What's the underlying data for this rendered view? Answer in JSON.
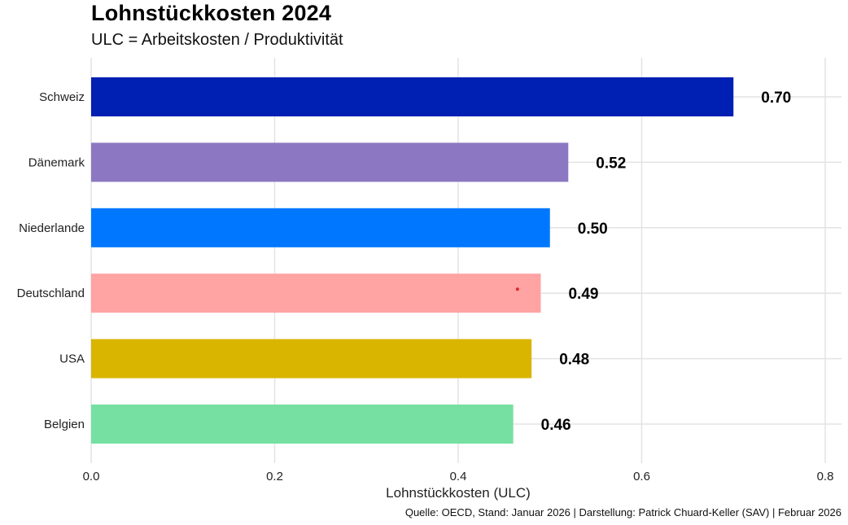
{
  "chart_data": {
    "type": "bar",
    "orientation": "horizontal",
    "title": "Lohnstückkosten 2024",
    "subtitle": "ULC = Arbeitskosten / Produktivität",
    "categories": [
      "Schweiz",
      "Dänemark",
      "Niederlande",
      "Deutschland",
      "USA",
      "Belgien"
    ],
    "values": [
      0.7,
      0.52,
      0.5,
      0.49,
      0.48,
      0.46
    ],
    "value_labels": [
      "0.70",
      "0.52",
      "0.50",
      "0.49",
      "0.48",
      "0.46"
    ],
    "colors": [
      "#001fb3",
      "#8c78c2",
      "#0077ff",
      "#ffa3a3",
      "#d9b500",
      "#75e0a2"
    ],
    "xlabel": "Lohnstückkosten (ULC)",
    "ylabel": "",
    "xlim": [
      0,
      0.8
    ],
    "xticks": [
      0.0,
      0.2,
      0.4,
      0.6,
      0.8
    ],
    "xtick_labels": [
      "0.0",
      "0.2",
      "0.4",
      "0.6",
      "0.8"
    ],
    "grid": true,
    "legend": "none",
    "caption": "Quelle: OECD, Stand: Januar 2026 | Darstellung: Patrick Chuard-Keller (SAV) | Februar 2026"
  }
}
